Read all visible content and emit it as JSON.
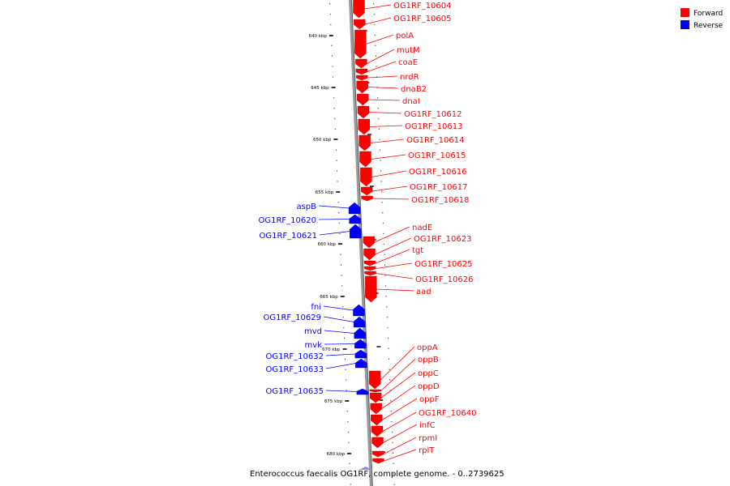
{
  "caption": "Enterococcus faecalis OG1RF, complete genome. - 0..2739625",
  "legend": [
    {
      "label": "Forward",
      "color": "#ff0000"
    },
    {
      "label": "Reverse",
      "color": "#0000ff"
    }
  ],
  "colors": {
    "forward": "#ff0000",
    "reverse": "#0000ff",
    "backbone": "#888888"
  },
  "scale": {
    "unit": "kbp",
    "labels": [
      "640 kbp",
      "645 kbp",
      "650 kbp",
      "655 kbp",
      "660 kbp",
      "665 kbp",
      "670 kbp",
      "675 kbp",
      "680 kbp"
    ]
  },
  "genes": [
    {
      "name": "OG1RF_10604",
      "strand": "forward"
    },
    {
      "name": "OG1RF_10605",
      "strand": "forward"
    },
    {
      "name": "polA",
      "strand": "forward"
    },
    {
      "name": "mutM",
      "strand": "forward"
    },
    {
      "name": "coaE",
      "strand": "forward"
    },
    {
      "name": "nrdR",
      "strand": "forward"
    },
    {
      "name": "dnaB2",
      "strand": "forward"
    },
    {
      "name": "dnaI",
      "strand": "forward"
    },
    {
      "name": "OG1RF_10612",
      "strand": "forward"
    },
    {
      "name": "OG1RF_10613",
      "strand": "forward"
    },
    {
      "name": "OG1RF_10614",
      "strand": "forward"
    },
    {
      "name": "OG1RF_10615",
      "strand": "forward"
    },
    {
      "name": "OG1RF_10616",
      "strand": "forward"
    },
    {
      "name": "OG1RF_10617",
      "strand": "forward"
    },
    {
      "name": "OG1RF_10618",
      "strand": "forward"
    },
    {
      "name": "aspB",
      "strand": "reverse"
    },
    {
      "name": "OG1RF_10620",
      "strand": "reverse"
    },
    {
      "name": "OG1RF_10621",
      "strand": "reverse"
    },
    {
      "name": "nadE",
      "strand": "forward"
    },
    {
      "name": "OG1RF_10623",
      "strand": "forward"
    },
    {
      "name": "tgt",
      "strand": "forward"
    },
    {
      "name": "OG1RF_10625",
      "strand": "forward"
    },
    {
      "name": "OG1RF_10626",
      "strand": "forward"
    },
    {
      "name": "aad",
      "strand": "forward"
    },
    {
      "name": "fni",
      "strand": "reverse"
    },
    {
      "name": "OG1RF_10629",
      "strand": "reverse"
    },
    {
      "name": "mvd",
      "strand": "reverse"
    },
    {
      "name": "mvk",
      "strand": "reverse"
    },
    {
      "name": "OG1RF_10632",
      "strand": "reverse"
    },
    {
      "name": "OG1RF_10633",
      "strand": "reverse"
    },
    {
      "name": "OG1RF_10635",
      "strand": "reverse"
    },
    {
      "name": "oppA",
      "strand": "forward"
    },
    {
      "name": "oppB",
      "strand": "forward"
    },
    {
      "name": "oppC",
      "strand": "forward"
    },
    {
      "name": "oppD",
      "strand": "forward"
    },
    {
      "name": "oppF",
      "strand": "forward"
    },
    {
      "name": "OG1RF_10640",
      "strand": "forward"
    },
    {
      "name": "infC",
      "strand": "forward"
    },
    {
      "name": "rpmI",
      "strand": "forward"
    },
    {
      "name": "rplT",
      "strand": "forward"
    }
  ]
}
